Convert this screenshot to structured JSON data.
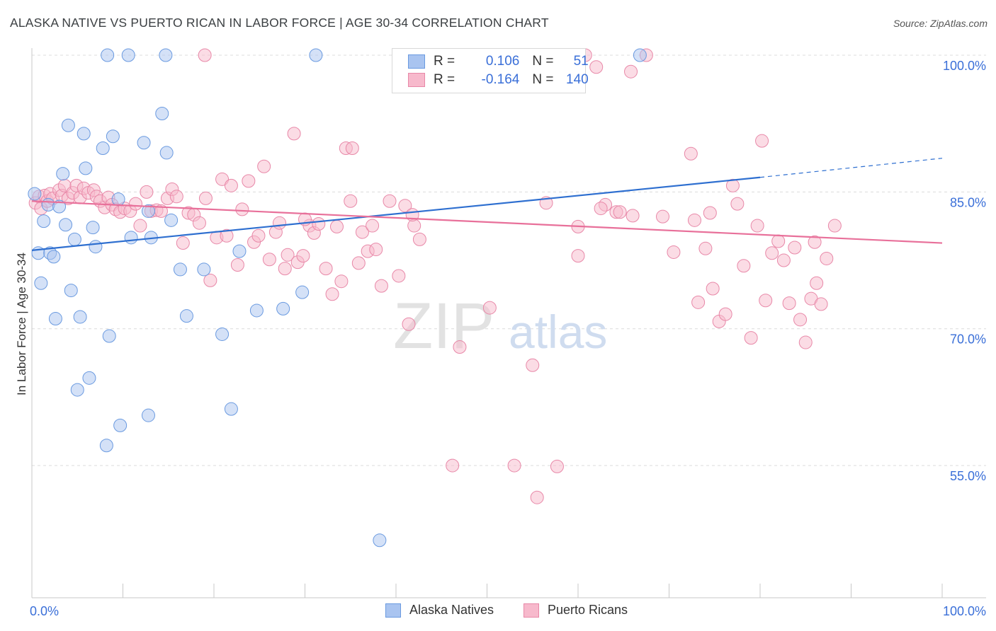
{
  "title": "ALASKA NATIVE VS PUERTO RICAN IN LABOR FORCE | AGE 30-34 CORRELATION CHART",
  "source": "Source: ZipAtlas.com",
  "watermark": {
    "zip": "ZIP",
    "atlas": "atlas"
  },
  "legend": {
    "rows": [
      {
        "r_label": "R = ",
        "r_value": "0.106",
        "n_label": "N = ",
        "n_value": "51",
        "color": "#a9c4f0",
        "border": "#6a9ae0"
      },
      {
        "r_label": "R = ",
        "r_value": "-0.164",
        "n_label": "N = ",
        "n_value": "140",
        "color": "#f7b9cc",
        "border": "#e888a8"
      }
    ]
  },
  "bottom_legend": {
    "alaska": "Alaska Natives",
    "puerto": "Puerto Ricans"
  },
  "chart_data": {
    "type": "scatter",
    "xlabel": "",
    "ylabel": "In Labor Force | Age 30-34",
    "xlim": [
      0,
      100
    ],
    "ylim": [
      40.5,
      100
    ],
    "x_tick_labels": [
      "0.0%",
      "100.0%"
    ],
    "y_ticks": [
      55,
      70,
      85,
      100
    ],
    "y_tick_labels": [
      "55.0%",
      "70.0%",
      "85.0%",
      "100.0%"
    ],
    "grid": true,
    "series": [
      {
        "name": "Alaska Natives",
        "color": "#a9c4f0",
        "stroke": "#6a9ae0",
        "line_color": "#2e6fd0",
        "trend": {
          "x0": 0,
          "y0": 78.6,
          "x1": 80,
          "y1": 86.6,
          "dash_to_x": 100,
          "dash_to_y": 88.7
        },
        "points": [
          [
            0.3,
            84.8
          ],
          [
            0.7,
            78.3
          ],
          [
            1.0,
            75.0
          ],
          [
            1.3,
            81.8
          ],
          [
            1.8,
            83.6
          ],
          [
            2.0,
            78.3
          ],
          [
            2.4,
            77.9
          ],
          [
            2.6,
            71.1
          ],
          [
            3.0,
            83.4
          ],
          [
            3.4,
            87.0
          ],
          [
            3.7,
            81.4
          ],
          [
            4.0,
            92.3
          ],
          [
            4.3,
            74.2
          ],
          [
            4.7,
            79.8
          ],
          [
            5.0,
            63.3
          ],
          [
            5.3,
            71.3
          ],
          [
            5.7,
            91.4
          ],
          [
            5.9,
            87.6
          ],
          [
            6.3,
            64.6
          ],
          [
            6.7,
            81.1
          ],
          [
            7.0,
            79.0
          ],
          [
            7.8,
            89.8
          ],
          [
            8.2,
            57.2
          ],
          [
            8.5,
            69.2
          ],
          [
            8.9,
            91.1
          ],
          [
            9.5,
            84.2
          ],
          [
            9.7,
            59.4
          ],
          [
            10.9,
            80.0
          ],
          [
            12.3,
            90.4
          ],
          [
            12.8,
            82.9
          ],
          [
            13.1,
            80.0
          ],
          [
            14.3,
            93.6
          ],
          [
            14.8,
            89.3
          ],
          [
            15.3,
            81.9
          ],
          [
            16.3,
            76.5
          ],
          [
            17.0,
            71.4
          ],
          [
            18.9,
            76.5
          ],
          [
            20.9,
            69.4
          ],
          [
            21.9,
            61.2
          ],
          [
            22.8,
            78.5
          ],
          [
            24.7,
            72.0
          ],
          [
            27.6,
            72.2
          ],
          [
            29.7,
            74.0
          ],
          [
            31.2,
            100.0
          ],
          [
            38.2,
            46.8
          ],
          [
            41.0,
            100.0
          ],
          [
            66.8,
            100.0
          ],
          [
            12.8,
            60.5
          ],
          [
            8.3,
            100.0
          ],
          [
            10.6,
            100.0
          ],
          [
            14.7,
            100.0
          ]
        ]
      },
      {
        "name": "Puerto Ricans",
        "color": "#f7b9cc",
        "stroke": "#e888a8",
        "line_color": "#e8709a",
        "trend": {
          "x0": 0,
          "y0": 84.0,
          "x1": 100,
          "y1": 79.4
        },
        "points": [
          [
            0.4,
            83.8
          ],
          [
            0.8,
            84.5
          ],
          [
            1.0,
            83.2
          ],
          [
            1.4,
            84.6
          ],
          [
            1.7,
            84.0
          ],
          [
            2.0,
            84.8
          ],
          [
            2.3,
            84.3
          ],
          [
            3.0,
            85.2
          ],
          [
            3.3,
            84.6
          ],
          [
            3.6,
            85.7
          ],
          [
            4.0,
            84.3
          ],
          [
            4.5,
            84.9
          ],
          [
            4.9,
            85.7
          ],
          [
            5.3,
            84.4
          ],
          [
            5.7,
            85.4
          ],
          [
            6.2,
            84.9
          ],
          [
            6.8,
            85.2
          ],
          [
            7.1,
            84.5
          ],
          [
            7.5,
            84.0
          ],
          [
            8.0,
            83.3
          ],
          [
            8.4,
            84.4
          ],
          [
            8.8,
            83.6
          ],
          [
            9.2,
            83.1
          ],
          [
            9.7,
            82.8
          ],
          [
            10.2,
            83.2
          ],
          [
            10.8,
            82.9
          ],
          [
            11.4,
            83.7
          ],
          [
            11.9,
            81.3
          ],
          [
            12.6,
            85.0
          ],
          [
            13.1,
            82.9
          ],
          [
            13.7,
            83.0
          ],
          [
            14.2,
            82.9
          ],
          [
            14.9,
            84.3
          ],
          [
            15.4,
            85.3
          ],
          [
            15.9,
            84.5
          ],
          [
            16.6,
            79.4
          ],
          [
            17.2,
            82.7
          ],
          [
            17.8,
            82.5
          ],
          [
            18.4,
            81.6
          ],
          [
            19.1,
            84.3
          ],
          [
            19.6,
            75.3
          ],
          [
            20.3,
            80.0
          ],
          [
            20.9,
            86.4
          ],
          [
            21.4,
            80.2
          ],
          [
            21.9,
            85.7
          ],
          [
            22.6,
            77.0
          ],
          [
            23.1,
            83.1
          ],
          [
            23.8,
            86.2
          ],
          [
            24.4,
            79.5
          ],
          [
            24.9,
            80.2
          ],
          [
            25.5,
            87.8
          ],
          [
            26.1,
            77.6
          ],
          [
            26.8,
            80.6
          ],
          [
            27.2,
            81.6
          ],
          [
            27.8,
            76.6
          ],
          [
            28.1,
            78.1
          ],
          [
            28.8,
            91.4
          ],
          [
            29.2,
            77.3
          ],
          [
            29.8,
            78.0
          ],
          [
            30.5,
            81.3
          ],
          [
            31.0,
            80.5
          ],
          [
            31.5,
            81.5
          ],
          [
            32.3,
            76.6
          ],
          [
            33.0,
            73.8
          ],
          [
            33.5,
            81.2
          ],
          [
            34.0,
            75.2
          ],
          [
            34.5,
            89.8
          ],
          [
            35.2,
            89.8
          ],
          [
            35.9,
            77.2
          ],
          [
            36.3,
            80.6
          ],
          [
            36.9,
            78.5
          ],
          [
            37.4,
            81.3
          ],
          [
            37.8,
            78.7
          ],
          [
            38.4,
            74.7
          ],
          [
            39.3,
            84.0
          ],
          [
            40.3,
            75.8
          ],
          [
            41.0,
            83.5
          ],
          [
            41.4,
            70.5
          ],
          [
            42.0,
            81.3
          ],
          [
            42.6,
            79.8
          ],
          [
            44.1,
            100.0
          ],
          [
            46.2,
            55.0
          ],
          [
            48.0,
            100.0
          ],
          [
            50.3,
            72.3
          ],
          [
            52.0,
            100.0
          ],
          [
            53.0,
            55.0
          ],
          [
            55.0,
            66.0
          ],
          [
            56.5,
            83.8
          ],
          [
            57.0,
            98.5
          ],
          [
            58.5,
            100.0
          ],
          [
            60.0,
            78.0
          ],
          [
            60.8,
            100.0
          ],
          [
            62.0,
            98.7
          ],
          [
            63.0,
            83.6
          ],
          [
            64.2,
            82.8
          ],
          [
            65.8,
            98.2
          ],
          [
            67.5,
            100.0
          ],
          [
            69.3,
            82.3
          ],
          [
            70.5,
            78.4
          ],
          [
            72.4,
            89.2
          ],
          [
            72.8,
            81.9
          ],
          [
            73.2,
            72.9
          ],
          [
            74.0,
            78.8
          ],
          [
            74.5,
            82.7
          ],
          [
            74.8,
            74.4
          ],
          [
            75.5,
            70.8
          ],
          [
            76.2,
            71.6
          ],
          [
            77.0,
            85.7
          ],
          [
            77.5,
            83.7
          ],
          [
            78.2,
            76.9
          ],
          [
            79.0,
            69.0
          ],
          [
            79.7,
            81.3
          ],
          [
            80.2,
            90.6
          ],
          [
            80.6,
            73.1
          ],
          [
            81.3,
            78.3
          ],
          [
            82.0,
            79.6
          ],
          [
            82.6,
            77.5
          ],
          [
            83.2,
            72.8
          ],
          [
            83.8,
            78.9
          ],
          [
            84.4,
            71.0
          ],
          [
            85.0,
            68.5
          ],
          [
            85.6,
            73.3
          ],
          [
            86.2,
            75.0
          ],
          [
            86.7,
            72.7
          ],
          [
            87.3,
            77.7
          ],
          [
            60.0,
            81.2
          ],
          [
            62.5,
            83.2
          ],
          [
            66.0,
            82.4
          ],
          [
            47.0,
            68.0
          ],
          [
            41.8,
            82.5
          ],
          [
            19.0,
            100.0
          ],
          [
            43.6,
            100.0
          ],
          [
            57.7,
            54.9
          ],
          [
            64.6,
            82.8
          ],
          [
            86.0,
            79.5
          ],
          [
            88.2,
            81.3
          ],
          [
            30.0,
            82.0
          ],
          [
            35.0,
            84.0
          ],
          [
            55.5,
            51.5
          ],
          [
            52.5,
            100.0
          ]
        ]
      }
    ]
  }
}
